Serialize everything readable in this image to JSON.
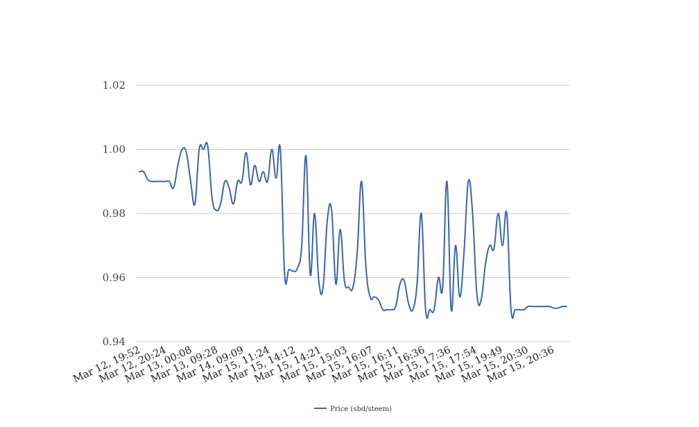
{
  "chart_data": {
    "type": "line",
    "title": "",
    "xlabel": "",
    "ylabel": "",
    "ylim": [
      0.94,
      1.02
    ],
    "yticks": [
      0.94,
      0.96,
      0.98,
      1.0,
      1.02
    ],
    "ytick_labels": [
      "0.94",
      "0.96",
      "0.98",
      "1.00",
      "1.02"
    ],
    "xtick_labels": [
      "Mar 12, 19:52",
      "Mar 12, 20:24",
      "Mar 13, 00:08",
      "Mar 13, 09:28",
      "Mar 14, 09:09",
      "Mar 15, 11:24",
      "Mar 15, 14:12",
      "Mar 15, 14:21",
      "Mar 15, 15:03",
      "Mar 15, 16:07",
      "Mar 15, 16:11",
      "Mar 15, 16:36",
      "Mar 15, 17:36",
      "Mar 15, 17:54",
      "Mar 15, 19:49",
      "Mar 15, 20:30",
      "Mar 15, 20:36"
    ],
    "grid": true,
    "legend": "bottom-center",
    "series": [
      {
        "name": "Price (sbd/steem)",
        "color": "#3b63b0",
        "values": [
          0.993,
          0.993,
          0.9905,
          0.99,
          0.99,
          0.99,
          0.99,
          0.99,
          0.988,
          0.995,
          1.0,
          0.999,
          0.99,
          0.983,
          1.0,
          1.0,
          1.001,
          0.985,
          0.981,
          0.983,
          0.99,
          0.988,
          0.983,
          0.99,
          0.99,
          0.999,
          0.989,
          0.995,
          0.99,
          0.993,
          0.99,
          1.0,
          0.991,
          1.0,
          0.961,
          0.9625,
          0.962,
          0.963,
          0.97,
          0.998,
          0.961,
          0.98,
          0.959,
          0.957,
          0.978,
          0.981,
          0.958,
          0.975,
          0.959,
          0.957,
          0.957,
          0.968,
          0.99,
          0.964,
          0.954,
          0.954,
          0.953,
          0.95,
          0.95,
          0.95,
          0.951,
          0.958,
          0.959,
          0.952,
          0.95,
          0.958,
          0.98,
          0.95,
          0.95,
          0.95,
          0.96,
          0.957,
          0.99,
          0.95,
          0.97,
          0.954,
          0.968,
          0.99,
          0.98,
          0.955,
          0.953,
          0.964,
          0.97,
          0.969,
          0.98,
          0.97,
          0.98,
          0.95,
          0.95,
          0.95,
          0.95,
          0.951,
          0.951,
          0.951,
          0.951,
          0.951,
          0.951,
          0.9505,
          0.9505,
          0.951,
          0.951
        ]
      }
    ]
  }
}
